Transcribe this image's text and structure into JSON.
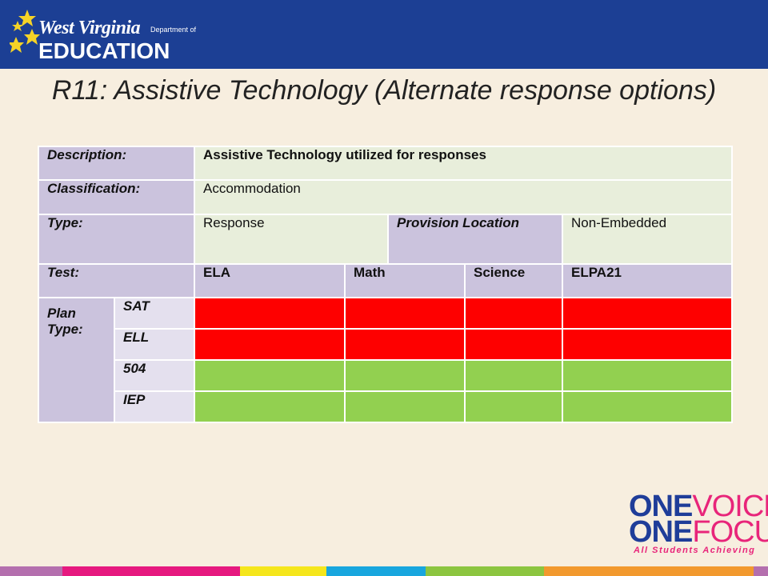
{
  "header": {
    "logo_state": "West Virginia",
    "logo_dept": "Department of",
    "logo_agency": "EDUCATION"
  },
  "title": "R11: Assistive Technology (Alternate response options)",
  "table": {
    "description_label": "Description:",
    "description_value": "Assistive Technology utilized for responses",
    "classification_label": "Classification:",
    "classification_value": "Accommodation",
    "type_label": "Type:",
    "type_value": "Response",
    "provision_label": "Provision Location",
    "provision_value": "Non-Embedded",
    "test_label": "Test:",
    "tests": [
      "ELA",
      "Math",
      "Science",
      "ELPA21"
    ],
    "plan_type_label": "Plan Type:",
    "plans": [
      {
        "name": "SAT",
        "status_color": "#fe0000"
      },
      {
        "name": "ELL",
        "status_color": "#fe0000"
      },
      {
        "name": "504",
        "status_color": "#92d050"
      },
      {
        "name": "IEP",
        "status_color": "#92d050"
      }
    ]
  },
  "brand": {
    "one_1": "ONE",
    "word_1": "VOICE",
    "one_2": "ONE",
    "word_2": "FOCUS",
    "tagline": "All Students Achieving"
  },
  "colors": {
    "header_blue": "#1c3f94",
    "label_purple": "#cbc3dd",
    "value_green_light": "#e8eedb",
    "not_available_red": "#fe0000",
    "available_green": "#92d050"
  }
}
